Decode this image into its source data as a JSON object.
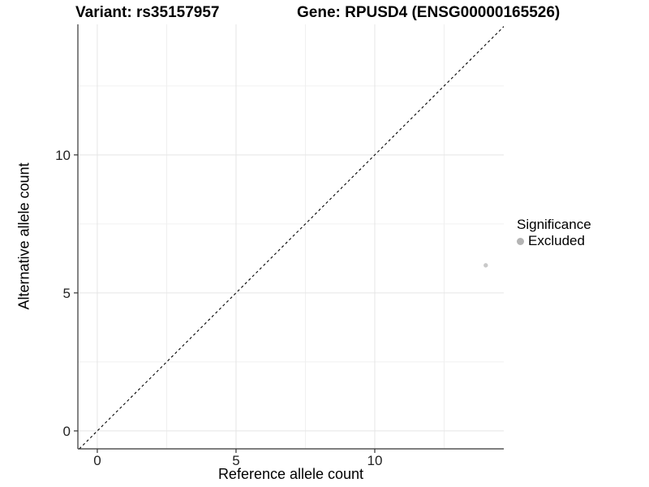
{
  "chart_data": {
    "type": "scatter",
    "title_left": "Variant: rs35157957",
    "title_right": "Gene: RPUSD4 (ENSG00000165526)",
    "xlabel": "Reference allele count",
    "ylabel": "Alternative allele count",
    "xlim": [
      -0.7,
      14.65
    ],
    "ylim": [
      -0.65,
      14.73
    ],
    "x_ticks": [
      0,
      5,
      10
    ],
    "y_ticks": [
      0,
      5,
      10
    ],
    "x_minor_ticks": [
      2.5,
      7.5,
      12.5
    ],
    "y_minor_ticks": [
      2.5,
      7.5,
      12.5
    ],
    "grid": true,
    "points": [
      {
        "x": 14,
        "y": 6,
        "series": "Excluded"
      }
    ],
    "reference_line": {
      "type": "identity",
      "equation": "y = x",
      "style": "dashed"
    },
    "legend": {
      "title": "Significance",
      "position": "right",
      "items": [
        {
          "label": "Excluded",
          "color": "#b4b4b4"
        }
      ]
    },
    "colors": {
      "background": "#ffffff",
      "grid_major": "#e5e5e5",
      "grid_minor": "#f0f0f0",
      "axis_line": "#333333",
      "tick_mark": "#333333",
      "tick_text": "#222222",
      "identity_line": "#000000",
      "point": "#c9c9c9"
    }
  }
}
